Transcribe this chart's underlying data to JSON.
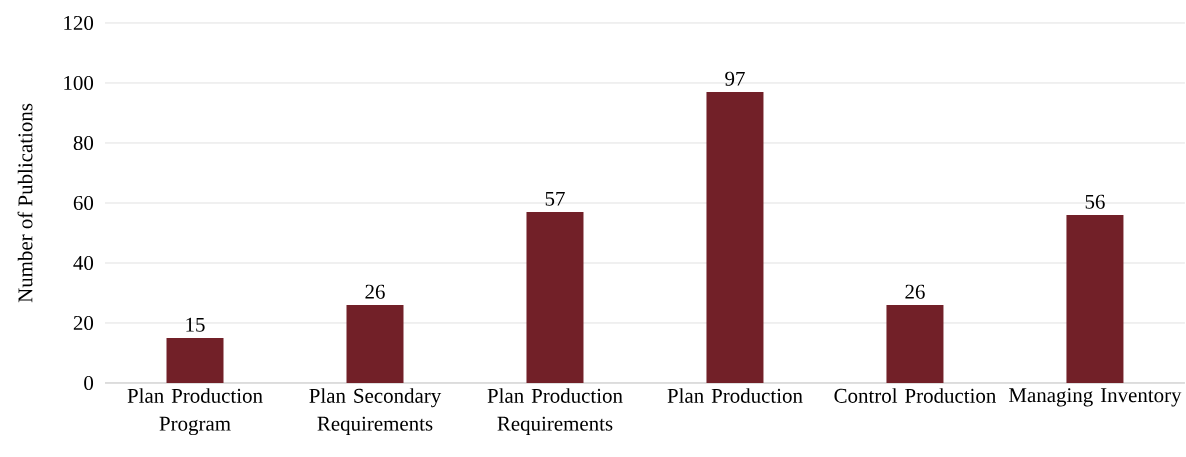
{
  "chart_data": {
    "type": "bar",
    "ylabel": "Number of Publications",
    "categories": [
      "Plan Production Program",
      "Plan Secondary Requirements",
      "Plan Production Requirements",
      "Plan Production",
      "Control Production",
      "Managing Inventory"
    ],
    "values": [
      15,
      26,
      57,
      97,
      26,
      56
    ],
    "color": "#722028",
    "ylim": [
      0,
      120
    ],
    "yticks": [
      0,
      20,
      40,
      60,
      80,
      100,
      120
    ],
    "grid": "y",
    "data_labels": true
  }
}
